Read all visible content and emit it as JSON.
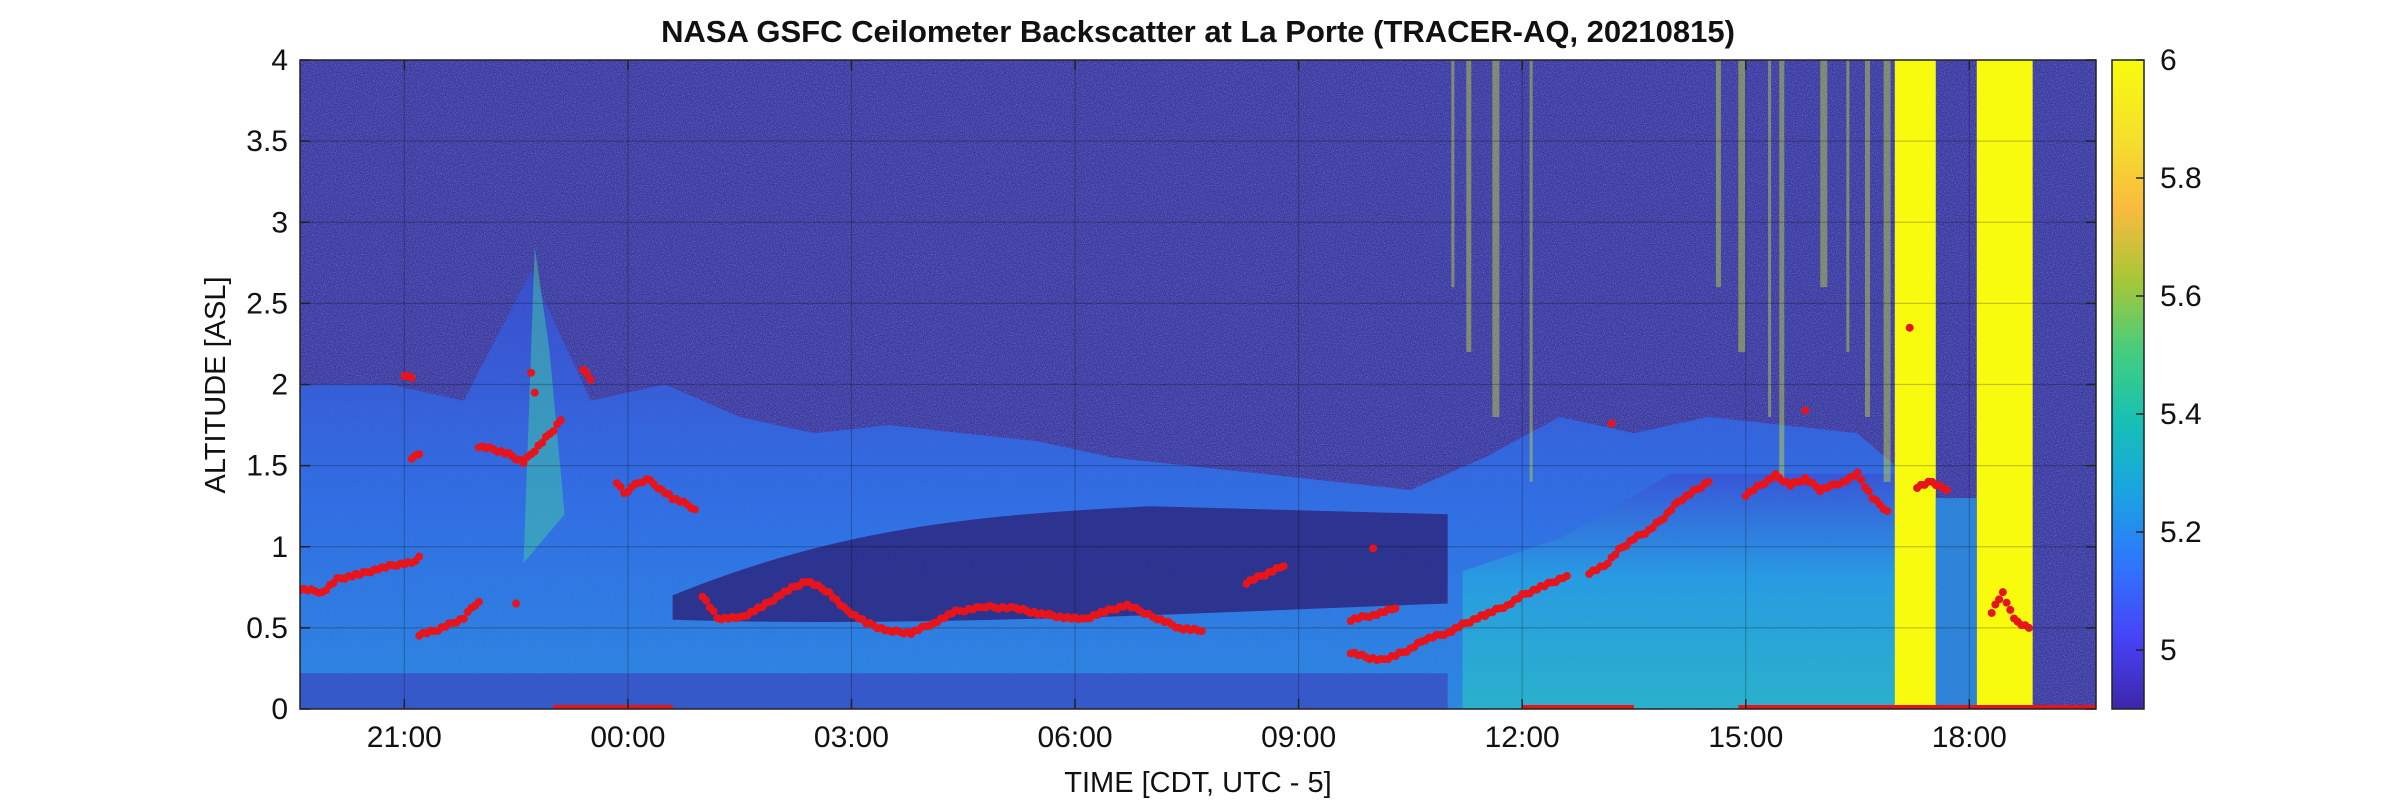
{
  "chart_data": {
    "type": "heatmap",
    "title": "NASA GSFC Ceilometer Backscatter at La Porte (TRACER-AQ, 20210815)",
    "xlabel": "TIME [CDT, UTC - 5]",
    "ylabel": "ALTITUDE [ASL]",
    "x_units": "hours from 00:00 CDT on 2021-08-15",
    "xlim": [
      -4.4,
      19.7
    ],
    "ylim": [
      0,
      4
    ],
    "x_ticks": [
      {
        "value": -3,
        "label": "21:00"
      },
      {
        "value": 0,
        "label": "00:00"
      },
      {
        "value": 3,
        "label": "03:00"
      },
      {
        "value": 6,
        "label": "06:00"
      },
      {
        "value": 9,
        "label": "09:00"
      },
      {
        "value": 12,
        "label": "12:00"
      },
      {
        "value": 15,
        "label": "15:00"
      },
      {
        "value": 18,
        "label": "18:00"
      }
    ],
    "y_ticks": [
      {
        "value": 0,
        "label": "0"
      },
      {
        "value": 0.5,
        "label": "0.5"
      },
      {
        "value": 1,
        "label": "1"
      },
      {
        "value": 1.5,
        "label": "1.5"
      },
      {
        "value": 2,
        "label": "2"
      },
      {
        "value": 2.5,
        "label": "2.5"
      },
      {
        "value": 3,
        "label": "3"
      },
      {
        "value": 3.5,
        "label": "3.5"
      },
      {
        "value": 4,
        "label": "4"
      }
    ],
    "grid": true,
    "colorbar": {
      "clim": [
        4.9,
        6.0
      ],
      "ticks": [
        {
          "value": 5.0,
          "label": "5"
        },
        {
          "value": 5.2,
          "label": "5.2"
        },
        {
          "value": 5.4,
          "label": "5.4"
        },
        {
          "value": 5.6,
          "label": "5.6"
        },
        {
          "value": 5.8,
          "label": "5.8"
        },
        {
          "value": 6.0,
          "label": "6"
        }
      ],
      "colormap": [
        "#3e26a8",
        "#4743f8",
        "#2f75fe",
        "#1ba2e4",
        "#16c0b6",
        "#44cd7f",
        "#a7c738",
        "#f9ba3e",
        "#f5e02b",
        "#f9fb0e"
      ]
    },
    "background_colors": {
      "free_troposphere": "#3a3a9e",
      "boundary_layer": "#2f6ad8",
      "near_surface": "#3a4ac0",
      "saturated": "#f9fb0e",
      "dark_gap": "#2c2c86"
    },
    "marker_color": "#e8141c",
    "saturated_periods": [
      [
        17.0,
        17.55
      ],
      [
        18.1,
        18.85
      ]
    ],
    "layer_heights": {
      "segments": [
        [
          [
            -4.4,
            0.74
          ],
          [
            -4.1,
            0.72
          ],
          [
            -3.9,
            0.8
          ],
          [
            -3.6,
            0.83
          ],
          [
            -3.3,
            0.87
          ],
          [
            -3.1,
            0.89
          ],
          [
            -2.9,
            0.9
          ],
          [
            -2.8,
            0.94
          ]
        ],
        [
          [
            -2.8,
            0.46
          ],
          [
            -2.6,
            0.48
          ],
          [
            -2.4,
            0.52
          ],
          [
            -2.2,
            0.56
          ],
          [
            -2.1,
            0.62
          ],
          [
            -2.0,
            0.66
          ]
        ],
        [
          [
            -2.9,
            1.55
          ],
          [
            -2.8,
            1.57
          ]
        ],
        [
          [
            -3.0,
            2.06
          ],
          [
            -2.9,
            2.04
          ]
        ],
        [
          [
            -1.5,
            0.65
          ]
        ],
        [
          [
            -2.0,
            1.62
          ],
          [
            -1.8,
            1.6
          ],
          [
            -1.6,
            1.57
          ],
          [
            -1.4,
            1.52
          ],
          [
            -1.2,
            1.62
          ],
          [
            -1.0,
            1.72
          ],
          [
            -0.9,
            1.78
          ]
        ],
        [
          [
            -1.3,
            2.08
          ],
          [
            -1.25,
            1.95
          ]
        ],
        [
          [
            -0.15,
            1.4
          ],
          [
            -0.05,
            1.33
          ],
          [
            0.1,
            1.38
          ],
          [
            0.25,
            1.42
          ],
          [
            0.45,
            1.35
          ],
          [
            0.6,
            1.3
          ],
          [
            0.8,
            1.26
          ],
          [
            0.9,
            1.23
          ]
        ],
        [
          [
            -0.6,
            2.1
          ],
          [
            -0.5,
            2.03
          ]
        ],
        [
          [
            1.0,
            0.7
          ],
          [
            1.2,
            0.56
          ],
          [
            1.5,
            0.56
          ],
          [
            1.8,
            0.63
          ],
          [
            2.1,
            0.72
          ],
          [
            2.4,
            0.79
          ],
          [
            2.7,
            0.72
          ],
          [
            2.9,
            0.62
          ],
          [
            3.2,
            0.53
          ],
          [
            3.5,
            0.48
          ],
          [
            3.8,
            0.47
          ],
          [
            4.1,
            0.53
          ],
          [
            4.4,
            0.6
          ],
          [
            4.8,
            0.63
          ],
          [
            5.2,
            0.62
          ],
          [
            5.5,
            0.59
          ],
          [
            5.8,
            0.57
          ],
          [
            6.1,
            0.55
          ],
          [
            6.4,
            0.6
          ],
          [
            6.7,
            0.64
          ],
          [
            7.1,
            0.56
          ],
          [
            7.4,
            0.5
          ],
          [
            7.7,
            0.48
          ]
        ],
        [
          [
            8.3,
            0.78
          ],
          [
            8.5,
            0.82
          ],
          [
            8.7,
            0.86
          ],
          [
            8.8,
            0.88
          ]
        ],
        [
          [
            9.7,
            0.55
          ],
          [
            10.0,
            0.58
          ],
          [
            10.3,
            0.62
          ]
        ],
        [
          [
            9.7,
            0.35
          ],
          [
            9.9,
            0.32
          ],
          [
            10.1,
            0.3
          ],
          [
            10.3,
            0.33
          ],
          [
            10.5,
            0.37
          ],
          [
            10.7,
            0.43
          ],
          [
            11.0,
            0.47
          ],
          [
            11.2,
            0.52
          ],
          [
            11.5,
            0.58
          ]
        ],
        [
          [
            11.5,
            0.58
          ],
          [
            11.8,
            0.64
          ],
          [
            12.0,
            0.7
          ],
          [
            12.3,
            0.76
          ],
          [
            12.6,
            0.82
          ]
        ],
        [
          [
            12.9,
            0.84
          ],
          [
            13.1,
            0.88
          ],
          [
            13.3,
            0.98
          ],
          [
            13.5,
            1.05
          ],
          [
            13.7,
            1.1
          ],
          [
            13.9,
            1.18
          ],
          [
            14.1,
            1.28
          ],
          [
            14.3,
            1.34
          ],
          [
            14.5,
            1.4
          ]
        ],
        [
          [
            15.0,
            1.32
          ],
          [
            15.2,
            1.38
          ],
          [
            15.4,
            1.44
          ],
          [
            15.6,
            1.38
          ],
          [
            15.8,
            1.42
          ],
          [
            16.0,
            1.35
          ],
          [
            16.3,
            1.4
          ],
          [
            16.5,
            1.45
          ],
          [
            16.7,
            1.3
          ],
          [
            16.9,
            1.22
          ]
        ],
        [
          [
            15.8,
            1.84
          ]
        ],
        [
          [
            13.2,
            1.76
          ]
        ],
        [
          [
            10.0,
            0.99
          ]
        ],
        [
          [
            17.3,
            1.37
          ],
          [
            17.5,
            1.4
          ],
          [
            17.7,
            1.35
          ]
        ],
        [
          [
            17.2,
            2.35
          ]
        ],
        [
          [
            18.3,
            0.6
          ],
          [
            18.45,
            0.72
          ],
          [
            18.6,
            0.55
          ],
          [
            18.8,
            0.5
          ]
        ]
      ],
      "surface_flags": [
        [
          -1.0,
          0.6
        ],
        [
          12.0,
          13.5
        ],
        [
          14.9,
          19.7
        ]
      ]
    }
  }
}
